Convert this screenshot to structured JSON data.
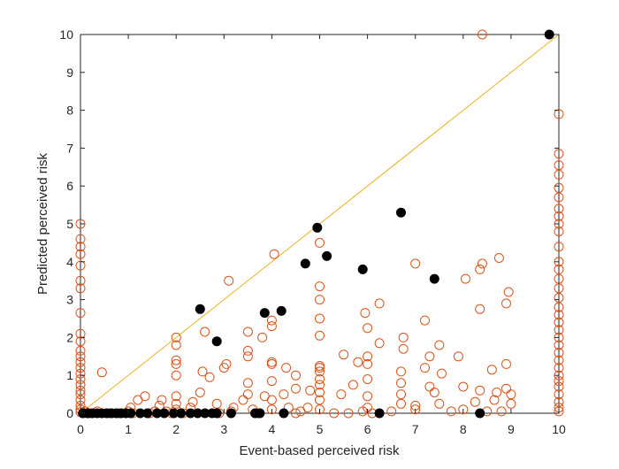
{
  "chart_data": {
    "type": "scatter",
    "xlabel": "Event-based perceived risk",
    "ylabel": "Predicted perceived risk",
    "xlim": [
      0,
      10
    ],
    "ylim": [
      0,
      10
    ],
    "xticks": [
      "0",
      "1",
      "2",
      "3",
      "4",
      "5",
      "6",
      "7",
      "8",
      "9",
      "10"
    ],
    "yticks": [
      "0",
      "1",
      "2",
      "3",
      "4",
      "5",
      "6",
      "7",
      "8",
      "9",
      "10"
    ],
    "grid": false,
    "reference_line": {
      "from": [
        0,
        0
      ],
      "to": [
        10,
        10
      ],
      "color": "#EDB120"
    },
    "colors": {
      "open_markers": "#D95319",
      "filled_markers": "#000000",
      "axes": "#262626"
    },
    "series": [
      {
        "marker": "open-circle",
        "points": [
          [
            0,
            0.03
          ],
          [
            0,
            0.1
          ],
          [
            0,
            0.2
          ],
          [
            0,
            0.35
          ],
          [
            0,
            0.5
          ],
          [
            0,
            0.6
          ],
          [
            0,
            0.75
          ],
          [
            0,
            0.9
          ],
          [
            0,
            1.05
          ],
          [
            0,
            1.2
          ],
          [
            0,
            1.35
          ],
          [
            0,
            1.5
          ],
          [
            0,
            1.65
          ],
          [
            0,
            1.9
          ],
          [
            0,
            2.1
          ],
          [
            0,
            2.65
          ],
          [
            0,
            3.3
          ],
          [
            0,
            3.5
          ],
          [
            0,
            3.9
          ],
          [
            0,
            4.2
          ],
          [
            0,
            4.4
          ],
          [
            0,
            4.6
          ],
          [
            0,
            5.0
          ],
          [
            0.05,
            0
          ],
          [
            0.1,
            0.05
          ],
          [
            0.15,
            0
          ],
          [
            0.2,
            0
          ],
          [
            0.35,
            0.05
          ],
          [
            0.45,
            1.08
          ],
          [
            0.6,
            0
          ],
          [
            0.8,
            0
          ],
          [
            1.0,
            0.05
          ],
          [
            1.1,
            0
          ],
          [
            1.05,
            0.15
          ],
          [
            1.2,
            0.35
          ],
          [
            1.35,
            0.45
          ],
          [
            1.45,
            0
          ],
          [
            1.55,
            0.05
          ],
          [
            1.65,
            0.2
          ],
          [
            1.7,
            0.35
          ],
          [
            1.8,
            0.05
          ],
          [
            1.9,
            0
          ],
          [
            2.0,
            0.1
          ],
          [
            2.0,
            0.25
          ],
          [
            2.0,
            0.45
          ],
          [
            2.0,
            1.0
          ],
          [
            2.0,
            1.3
          ],
          [
            2.0,
            1.4
          ],
          [
            2.0,
            1.8
          ],
          [
            2.0,
            2.0
          ],
          [
            2.15,
            0
          ],
          [
            2.3,
            0.15
          ],
          [
            2.35,
            0.3
          ],
          [
            2.5,
            0.55
          ],
          [
            2.55,
            1.1
          ],
          [
            2.6,
            2.15
          ],
          [
            2.7,
            0.95
          ],
          [
            2.85,
            0.25
          ],
          [
            2.9,
            0
          ],
          [
            3.0,
            1.2
          ],
          [
            3.05,
            1.3
          ],
          [
            3.1,
            3.5
          ],
          [
            3.15,
            0.05
          ],
          [
            3.2,
            0.15
          ],
          [
            3.4,
            0.35
          ],
          [
            3.5,
            0.5
          ],
          [
            3.5,
            0.8
          ],
          [
            3.5,
            1.5
          ],
          [
            3.5,
            1.65
          ],
          [
            3.5,
            2.15
          ],
          [
            3.6,
            0.1
          ],
          [
            3.7,
            0
          ],
          [
            3.8,
            2.0
          ],
          [
            3.85,
            0.45
          ],
          [
            4.0,
            0.1
          ],
          [
            4.0,
            0.35
          ],
          [
            4.0,
            0.85
          ],
          [
            4.0,
            1.3
          ],
          [
            4.0,
            1.35
          ],
          [
            4.0,
            2.3
          ],
          [
            4.0,
            2.45
          ],
          [
            4.05,
            4.2
          ],
          [
            4.25,
            0.5
          ],
          [
            4.3,
            1.2
          ],
          [
            4.35,
            0.15
          ],
          [
            4.5,
            0
          ],
          [
            4.5,
            0.65
          ],
          [
            4.5,
            1.0
          ],
          [
            4.6,
            0.05
          ],
          [
            4.75,
            0.15
          ],
          [
            4.8,
            0.6
          ],
          [
            5.0,
            0.1
          ],
          [
            5.0,
            0.35
          ],
          [
            5.0,
            0.55
          ],
          [
            5.0,
            0.75
          ],
          [
            5.0,
            0.9
          ],
          [
            5.0,
            1.1
          ],
          [
            5.0,
            1.2
          ],
          [
            5.0,
            1.25
          ],
          [
            5.0,
            2.05
          ],
          [
            5.0,
            2.5
          ],
          [
            5.0,
            3.0
          ],
          [
            5.0,
            3.35
          ],
          [
            5.0,
            4.5
          ],
          [
            5.3,
            0
          ],
          [
            5.45,
            0.5
          ],
          [
            5.5,
            1.55
          ],
          [
            5.6,
            0
          ],
          [
            5.7,
            0.75
          ],
          [
            5.8,
            1.35
          ],
          [
            5.9,
            0.05
          ],
          [
            5.95,
            2.65
          ],
          [
            6.0,
            0.15
          ],
          [
            6.0,
            0.45
          ],
          [
            6.0,
            0.9
          ],
          [
            6.0,
            1.3
          ],
          [
            6.0,
            1.5
          ],
          [
            6.0,
            2.25
          ],
          [
            6.1,
            0
          ],
          [
            6.25,
            1.85
          ],
          [
            6.25,
            2.9
          ],
          [
            6.5,
            0.05
          ],
          [
            6.7,
            0.25
          ],
          [
            6.7,
            0.5
          ],
          [
            6.7,
            0.8
          ],
          [
            6.7,
            1.1
          ],
          [
            6.75,
            1.7
          ],
          [
            6.75,
            2.0
          ],
          [
            7.0,
            0.1
          ],
          [
            7.0,
            0.2
          ],
          [
            7.0,
            3.95
          ],
          [
            7.2,
            1.2
          ],
          [
            7.2,
            2.45
          ],
          [
            7.3,
            1.5
          ],
          [
            7.3,
            0.7
          ],
          [
            7.4,
            0.55
          ],
          [
            7.5,
            0.25
          ],
          [
            7.55,
            1.05
          ],
          [
            7.5,
            1.8
          ],
          [
            7.75,
            0.05
          ],
          [
            7.9,
            1.5
          ],
          [
            8.0,
            0.1
          ],
          [
            8.0,
            0.7
          ],
          [
            8.05,
            3.55
          ],
          [
            8.25,
            0.3
          ],
          [
            8.35,
            0.6
          ],
          [
            8.35,
            2.75
          ],
          [
            8.35,
            3.8
          ],
          [
            8.4,
            10.0
          ],
          [
            8.4,
            3.95
          ],
          [
            8.5,
            0.05
          ],
          [
            8.6,
            1.15
          ],
          [
            8.65,
            0.35
          ],
          [
            8.7,
            0.55
          ],
          [
            8.75,
            4.1
          ],
          [
            8.8,
            0.05
          ],
          [
            8.9,
            0.65
          ],
          [
            8.9,
            1.3
          ],
          [
            8.9,
            2.9
          ],
          [
            8.95,
            3.2
          ],
          [
            9.0,
            0.25
          ],
          [
            9.0,
            0.5
          ],
          [
            10,
            0.05
          ],
          [
            10,
            0.15
          ],
          [
            10,
            0.3
          ],
          [
            10,
            0.5
          ],
          [
            10,
            0.7
          ],
          [
            10,
            0.85
          ],
          [
            10,
            1.0
          ],
          [
            10,
            1.2
          ],
          [
            10,
            1.4
          ],
          [
            10,
            1.6
          ],
          [
            10,
            1.8
          ],
          [
            10,
            2.0
          ],
          [
            10,
            2.2
          ],
          [
            10,
            2.4
          ],
          [
            10,
            2.6
          ],
          [
            10,
            2.8
          ],
          [
            10,
            3.05
          ],
          [
            10,
            3.3
          ],
          [
            10,
            3.55
          ],
          [
            10,
            3.8
          ],
          [
            10,
            4.0
          ],
          [
            10,
            4.4
          ],
          [
            10,
            4.8
          ],
          [
            10,
            5.0
          ],
          [
            10,
            5.2
          ],
          [
            10,
            5.4
          ],
          [
            10,
            5.7
          ],
          [
            10,
            5.95
          ],
          [
            10,
            6.3
          ],
          [
            10,
            6.55
          ],
          [
            10,
            6.85
          ],
          [
            10,
            7.9
          ]
        ]
      },
      {
        "marker": "filled-circle",
        "points": [
          [
            0.05,
            0
          ],
          [
            0.15,
            0
          ],
          [
            0.25,
            0
          ],
          [
            0.35,
            0
          ],
          [
            0.45,
            0
          ],
          [
            0.55,
            0
          ],
          [
            0.65,
            0
          ],
          [
            0.75,
            0
          ],
          [
            0.85,
            0
          ],
          [
            0.95,
            0
          ],
          [
            1.05,
            0
          ],
          [
            1.25,
            0
          ],
          [
            1.4,
            0
          ],
          [
            1.6,
            0
          ],
          [
            1.75,
            0
          ],
          [
            1.95,
            0
          ],
          [
            2.1,
            0
          ],
          [
            2.3,
            0
          ],
          [
            2.45,
            0
          ],
          [
            2.6,
            0
          ],
          [
            2.75,
            0
          ],
          [
            2.85,
            0
          ],
          [
            3.15,
            0
          ],
          [
            3.65,
            0
          ],
          [
            3.75,
            0
          ],
          [
            4.25,
            0
          ],
          [
            6.25,
            0
          ],
          [
            8.35,
            0
          ],
          [
            2.5,
            2.75
          ],
          [
            2.85,
            1.9
          ],
          [
            3.85,
            2.65
          ],
          [
            4.2,
            2.7
          ],
          [
            4.7,
            3.95
          ],
          [
            4.95,
            4.9
          ],
          [
            5.15,
            4.15
          ],
          [
            5.9,
            3.8
          ],
          [
            6.7,
            5.3
          ],
          [
            7.4,
            3.55
          ],
          [
            9.8,
            10.0
          ]
        ]
      }
    ]
  }
}
